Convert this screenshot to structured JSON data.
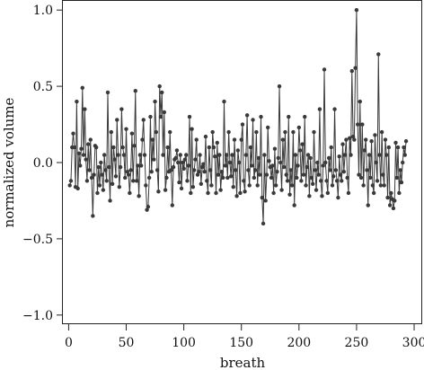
{
  "chart_data": {
    "type": "line",
    "title": "",
    "xlabel": "breath",
    "ylabel": "normalized volume",
    "xlim": [
      -5,
      307
    ],
    "ylim": [
      -1.06,
      1.06
    ],
    "grid": false,
    "legend": "none",
    "x_ticks": [
      0,
      50,
      100,
      150,
      200,
      250,
      300
    ],
    "x_tick_labels": [
      "0",
      "50",
      "100",
      "150",
      "200",
      "250",
      "300"
    ],
    "y_ticks": [
      -1.0,
      -0.5,
      0.0,
      0.5,
      1.0
    ],
    "y_tick_labels": [
      "−1.0",
      "−0.5",
      "0.0",
      "0.5",
      "1.0"
    ],
    "marker": "circle",
    "series_color": "#3a3a3a",
    "series": [
      {
        "x_start": 1,
        "x_step": 1,
        "values": [
          -0.15,
          -0.12,
          0.1,
          0.19,
          0.1,
          -0.16,
          0.4,
          -0.17,
          0.06,
          -0.02,
          0.09,
          0.49,
          0.05,
          0.35,
          0.02,
          -0.12,
          0.12,
          -0.05,
          0.15,
          -0.1,
          -0.35,
          -0.08,
          0.11,
          0.1,
          -0.2,
          -0.03,
          -0.15,
          0.0,
          -0.08,
          -0.18,
          0.05,
          -0.05,
          -0.12,
          0.46,
          -0.03,
          -0.25,
          0.2,
          -0.14,
          0.1,
          0.02,
          -0.09,
          0.28,
          0.05,
          -0.16,
          -0.03,
          0.35,
          0.1,
          0.05,
          -0.1,
          0.22,
          -0.06,
          -0.08,
          -0.2,
          -0.05,
          0.19,
          -0.12,
          0.11,
          0.47,
          -0.12,
          -0.02,
          -0.22,
          0.05,
          -0.02,
          0.15,
          0.28,
          0.05,
          -0.15,
          -0.31,
          -0.29,
          -0.1,
          0.3,
          -0.06,
          0.15,
          0.02,
          0.4,
          0.2,
          -0.05,
          -0.19,
          0.5,
          0.3,
          0.46,
          0.05,
          0.33,
          -0.18,
          -0.1,
          0.1,
          -0.06,
          0.2,
          -0.05,
          -0.28,
          -0.03,
          0.02,
          0.03,
          0.08,
          0.0,
          -0.13,
          0.05,
          -0.17,
          0.0,
          -0.04,
          0.02,
          0.05,
          -0.12,
          -0.02,
          0.3,
          -0.2,
          0.22,
          -0.16,
          -0.05,
          0.02,
          0.15,
          -0.08,
          -0.06,
          0.05,
          -0.14,
          -0.03,
          -0.01,
          -0.06,
          0.17,
          -0.12,
          -0.2,
          0.1,
          -0.05,
          -0.15,
          0.2,
          0.1,
          0.04,
          -0.2,
          0.13,
          -0.08,
          0.05,
          -0.18,
          -0.06,
          -0.1,
          0.4,
          -0.02,
          0.05,
          -0.1,
          0.2,
          0.0,
          -0.09,
          0.05,
          -0.16,
          0.15,
          -0.05,
          -0.22,
          0.08,
          0.0,
          -0.2,
          0.15,
          0.25,
          -0.12,
          -0.19,
          0.05,
          0.31,
          -0.05,
          -0.15,
          0.1,
          -0.02,
          0.28,
          -0.1,
          -0.05,
          0.2,
          -0.15,
          0.03,
          -0.08,
          0.3,
          -0.23,
          -0.4,
          0.05,
          -0.25,
          -0.08,
          0.23,
          0.01,
          -0.03,
          -0.1,
          -0.02,
          -0.2,
          0.09,
          -0.15,
          -0.06,
          0.03,
          0.5,
          0.0,
          -0.18,
          0.15,
          -0.03,
          0.2,
          -0.08,
          -0.12,
          0.3,
          -0.21,
          -0.05,
          -0.15,
          0.2,
          -0.28,
          0.05,
          -0.1,
          -0.02,
          0.23,
          0.08,
          -0.12,
          0.12,
          -0.08,
          0.3,
          -0.15,
          -0.03,
          0.05,
          -0.22,
          0.03,
          -0.1,
          -0.14,
          0.2,
          -0.05,
          -0.18,
          0.0,
          -0.08,
          0.35,
          -0.12,
          -0.22,
          -0.02,
          0.61,
          0.0,
          -0.12,
          -0.2,
          0.03,
          -0.05,
          0.1,
          -0.15,
          -0.09,
          0.35,
          -0.05,
          -0.12,
          -0.23,
          0.04,
          -0.08,
          -0.12,
          0.12,
          -0.06,
          0.05,
          0.15,
          -0.1,
          -0.2,
          0.16,
          0.05,
          0.6,
          0.17,
          0.15,
          0.62,
          1.0,
          0.25,
          -0.08,
          0.4,
          -0.1,
          0.25,
          -0.15,
          0.08,
          0.15,
          -0.05,
          -0.28,
          0.05,
          -0.1,
          0.14,
          -0.15,
          -0.2,
          0.18,
          0.0,
          -0.12,
          0.71,
          0.05,
          -0.15,
          0.2,
          -0.08,
          -0.15,
          0.15,
          0.05,
          -0.23,
          0.1,
          -0.28,
          -0.2,
          -0.24,
          -0.3,
          -0.25,
          0.13,
          -0.1,
          0.1,
          -0.2,
          -0.05,
          -0.13,
          0.0,
          0.1,
          0.05,
          0.14
        ]
      }
    ]
  }
}
